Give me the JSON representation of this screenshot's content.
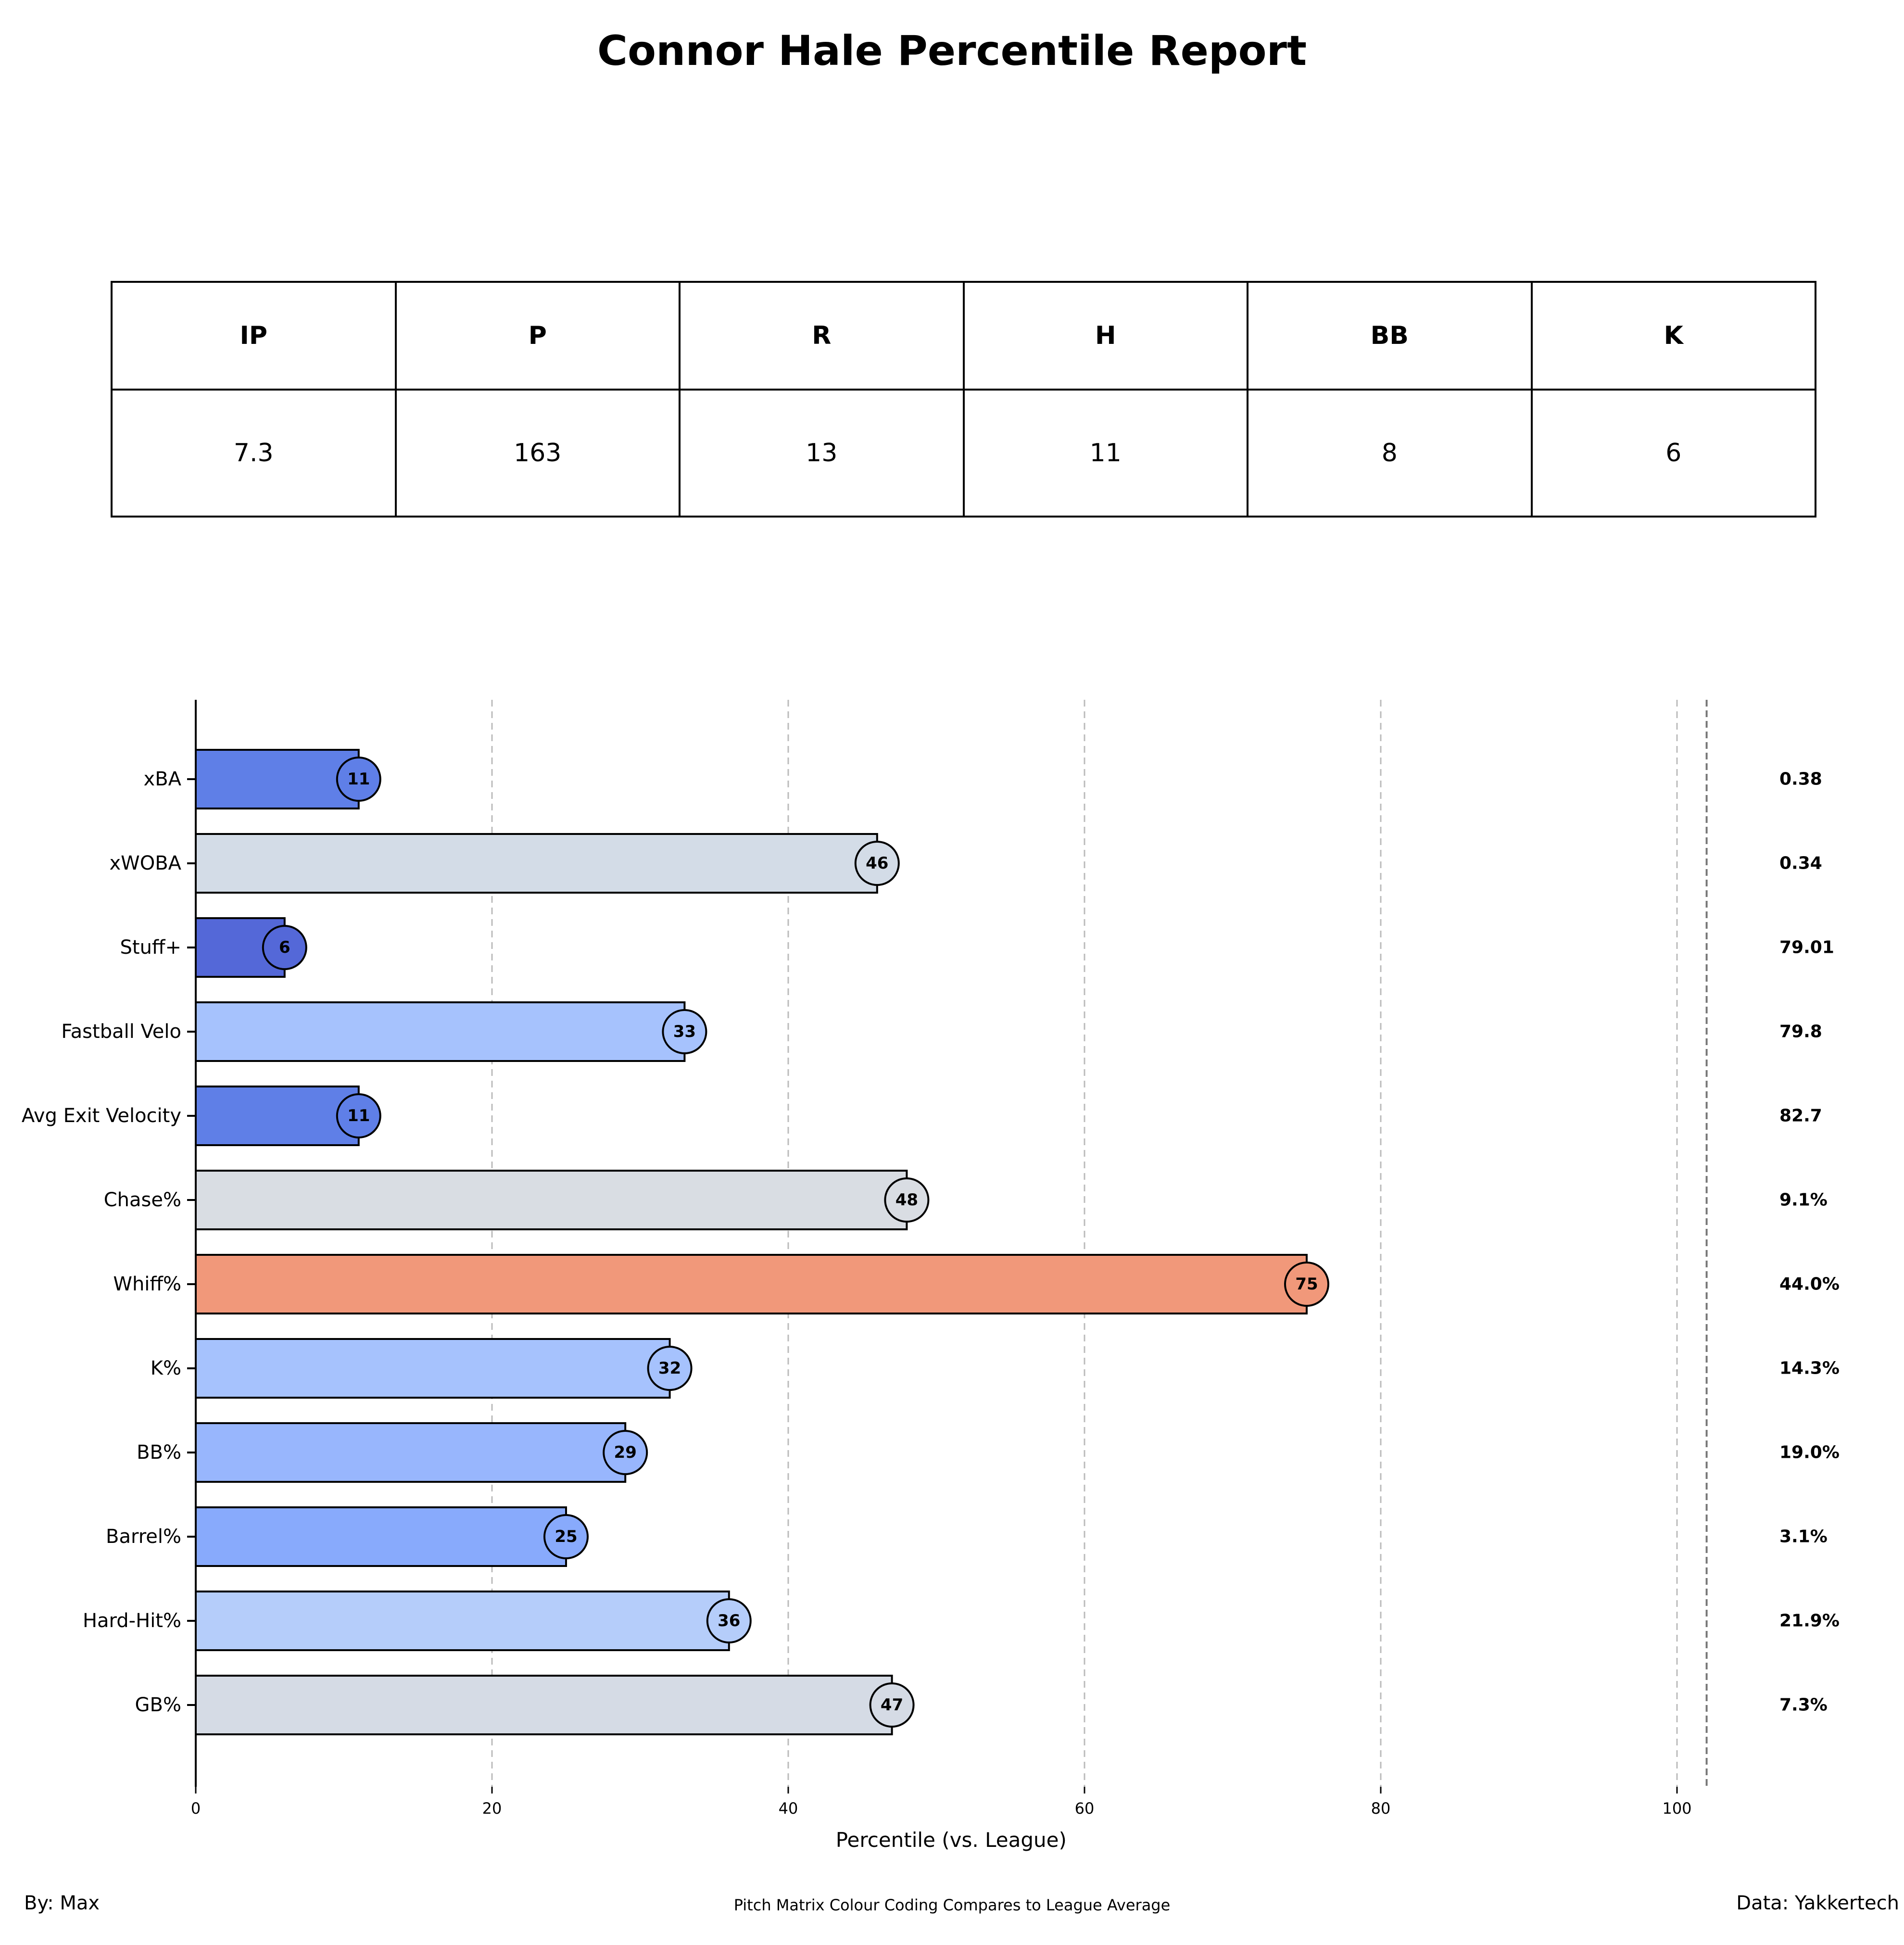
{
  "title": "Connor Hale Percentile Report",
  "stats": {
    "headers": [
      "IP",
      "P",
      "R",
      "H",
      "BB",
      "K"
    ],
    "values": [
      "7.3",
      "163",
      "13",
      "11",
      "8",
      "6"
    ]
  },
  "chart_data": {
    "type": "bar",
    "orientation": "horizontal",
    "title": "",
    "xlabel": "Percentile (vs. League)",
    "ylabel": "",
    "xlim": [
      0,
      102
    ],
    "xticks": [
      0,
      20,
      40,
      60,
      80,
      100
    ],
    "grid": "vertical dashed",
    "categories": [
      "xBA",
      "xWOBA",
      "Stuff+",
      "Fastball Velo",
      "Avg Exit Velocity",
      "Chase%",
      "Whiff%",
      "K%",
      "BB%",
      "Barrel%",
      "Hard-Hit%",
      "GB%"
    ],
    "values": [
      11,
      46,
      6,
      33,
      11,
      48,
      75,
      32,
      29,
      25,
      36,
      47
    ],
    "value_labels": [
      "11",
      "46",
      "6",
      "33",
      "11",
      "48",
      "75",
      "32",
      "29",
      "25",
      "36",
      "47"
    ],
    "raw_values": [
      "0.38",
      "0.34",
      "79.01",
      "79.8",
      "82.7",
      "9.1%",
      "44.0%",
      "14.3%",
      "19.0%",
      "3.1%",
      "21.9%",
      "7.3%"
    ],
    "colors": [
      "#5f7fe7",
      "#d3dce7",
      "#5468d8",
      "#a6c2fd",
      "#5f7fe7",
      "#d9dde3",
      "#f1987a",
      "#a6c2fd",
      "#98b6fd",
      "#88aafc",
      "#b5cdfa",
      "#d5dbe5"
    ]
  },
  "footer": {
    "left": "By: Max",
    "center": "Pitch Matrix Colour Coding Compares to League Average",
    "right": "Data: Yakkertech"
  }
}
